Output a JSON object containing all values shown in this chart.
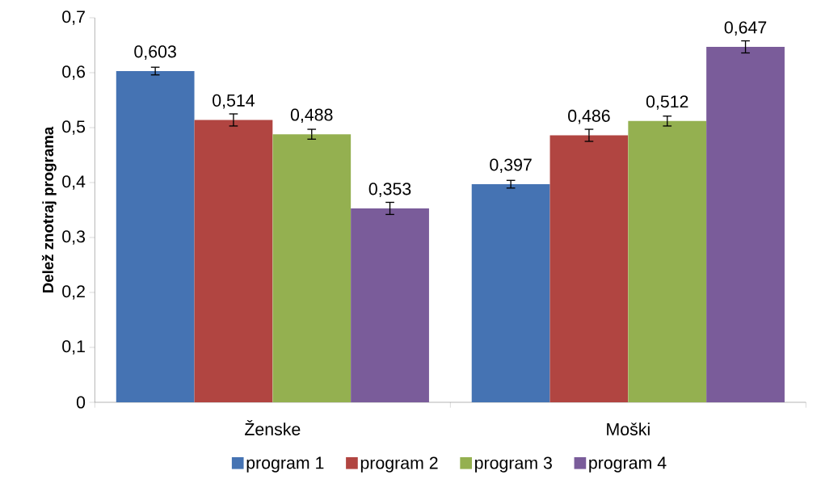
{
  "chart_data": {
    "type": "bar",
    "ylabel": "Delež znotraj programa",
    "categories": [
      "Ženske",
      "Moški"
    ],
    "series": [
      {
        "name": "program 1",
        "color": "#4573b3",
        "values": [
          0.603,
          0.397
        ],
        "errors": [
          0.007,
          0.007
        ],
        "value_labels": [
          "0,603",
          "0,397"
        ]
      },
      {
        "name": "program 2",
        "color": "#b14541",
        "values": [
          0.514,
          0.486
        ],
        "errors": [
          0.011,
          0.011
        ],
        "value_labels": [
          "0,514",
          "0,486"
        ]
      },
      {
        "name": "program 3",
        "color": "#94b050",
        "values": [
          0.488,
          0.512
        ],
        "errors": [
          0.009,
          0.009
        ],
        "value_labels": [
          "0,488",
          "0,512"
        ]
      },
      {
        "name": "program 4",
        "color": "#7a5c9a",
        "values": [
          0.353,
          0.647
        ],
        "errors": [
          0.011,
          0.011
        ],
        "value_labels": [
          "0,353",
          "0,647"
        ]
      }
    ],
    "ylim": [
      0,
      0.7
    ],
    "yticks": [
      0,
      {
        "value": 0.1,
        "label": "0,1"
      },
      {
        "value": 0.2,
        "label": "0,2"
      },
      {
        "value": 0.3,
        "label": "0,3"
      },
      {
        "value": 0.4,
        "label": "0,4"
      },
      {
        "value": 0.5,
        "label": "0,5"
      },
      {
        "value": 0.6,
        "label": "0,6"
      },
      {
        "value": 0.7,
        "label": "0,7"
      }
    ],
    "legend": "bottom"
  }
}
